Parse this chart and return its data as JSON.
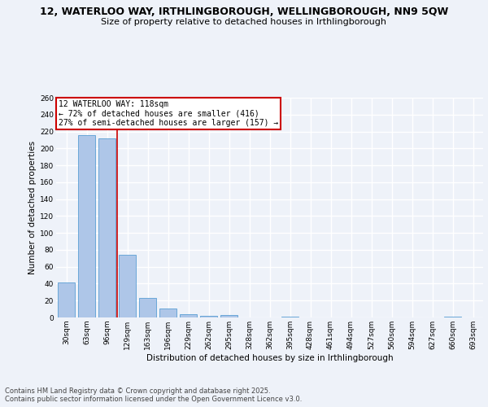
{
  "title_line1": "12, WATERLOO WAY, IRTHLINGBOROUGH, WELLINGBOROUGH, NN9 5QW",
  "title_line2": "Size of property relative to detached houses in Irthlingborough",
  "xlabel": "Distribution of detached houses by size in Irthlingborough",
  "ylabel": "Number of detached properties",
  "categories": [
    "30sqm",
    "63sqm",
    "96sqm",
    "129sqm",
    "163sqm",
    "196sqm",
    "229sqm",
    "262sqm",
    "295sqm",
    "328sqm",
    "362sqm",
    "395sqm",
    "428sqm",
    "461sqm",
    "494sqm",
    "527sqm",
    "560sqm",
    "594sqm",
    "627sqm",
    "660sqm",
    "693sqm"
  ],
  "values": [
    41,
    216,
    212,
    74,
    23,
    11,
    4,
    2,
    3,
    0,
    0,
    1,
    0,
    0,
    0,
    0,
    0,
    0,
    0,
    1,
    0
  ],
  "bar_color": "#aec6e8",
  "bar_edge_color": "#5a9fd4",
  "vline_x_index": 2,
  "annotation_title": "12 WATERLOO WAY: 118sqm",
  "annotation_line1": "← 72% of detached houses are smaller (416)",
  "annotation_line2": "27% of semi-detached houses are larger (157) →",
  "annotation_box_color": "#ffffff",
  "annotation_box_edge": "#cc0000",
  "vline_color": "#cc0000",
  "ylim": [
    0,
    260
  ],
  "yticks": [
    0,
    20,
    40,
    60,
    80,
    100,
    120,
    140,
    160,
    180,
    200,
    220,
    240,
    260
  ],
  "background_color": "#eef2f9",
  "grid_color": "#ffffff",
  "footer_line1": "Contains HM Land Registry data © Crown copyright and database right 2025.",
  "footer_line2": "Contains public sector information licensed under the Open Government Licence v3.0.",
  "title_fontsize": 9,
  "subtitle_fontsize": 8,
  "axis_label_fontsize": 7.5,
  "tick_fontsize": 6.5,
  "annotation_fontsize": 7,
  "footer_fontsize": 6
}
